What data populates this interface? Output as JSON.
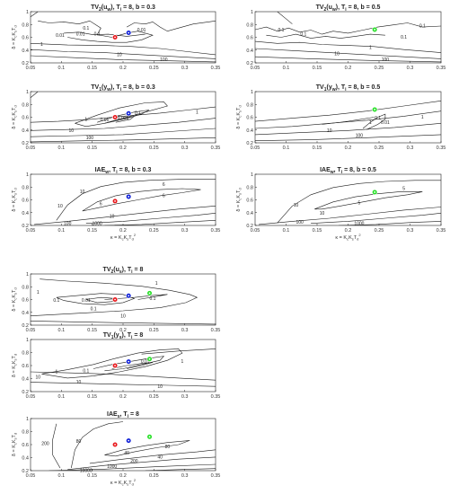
{
  "chart_data": [
    {
      "type": "contour",
      "title": "TV2(uw), Ti = 8, b = 0.3",
      "title_parts": {
        "base": "TV",
        "sub1": "2",
        "paren": "(u",
        "sub2": "w",
        "rest": "), T",
        "sub3": "i",
        "tail": " = 8, b = 0.3"
      },
      "xlabel": "",
      "ylabel": "δ = KcKsTd",
      "xlim": [
        0.05,
        0.35
      ],
      "ylim": [
        0.2,
        1
      ],
      "xticks": [
        "0.05",
        "0.1",
        "0.15",
        "0.2",
        "0.25",
        "0.3",
        "0.35"
      ],
      "yticks": [
        "0.2",
        "0.4",
        "0.6",
        "0.8",
        "1"
      ],
      "contour_labels": [
        "0.01",
        "0.01",
        "0.1",
        "0.1",
        "0.01",
        "1",
        "10",
        "100"
      ],
      "points": [
        {
          "color": "red",
          "kappa": 0.187,
          "delta": 0.6
        },
        {
          "color": "blue",
          "kappa": 0.209,
          "delta": 0.67
        }
      ]
    },
    {
      "type": "contour",
      "title": "TV2(uw), Ti = 8, b = 0.5",
      "title_parts": {
        "base": "TV",
        "sub1": "2",
        "paren": "(u",
        "sub2": "w",
        "rest": "), T",
        "sub3": "i",
        "tail": " = 8, b = 0.5"
      },
      "xlabel": "",
      "ylabel": "",
      "xlim": [
        0.05,
        0.35
      ],
      "ylim": [
        0.2,
        1
      ],
      "xticks": [
        "0.05",
        "0.1",
        "0.15",
        "0.2",
        "0.25",
        "0.3",
        "0.35"
      ],
      "yticks": [
        "0.2",
        "0.4",
        "0.6",
        "0.8",
        "1"
      ],
      "contour_labels": [
        "0.1",
        "0.1",
        "0.1",
        "1",
        "0.1",
        "10",
        "100"
      ],
      "points": [
        {
          "color": "green",
          "kappa": 0.243,
          "delta": 0.72
        }
      ]
    },
    {
      "type": "contour",
      "title": "TV1(yw), Ti = 8, b = 0.3",
      "title_parts": {
        "base": "TV",
        "sub1": "1",
        "paren": "(y",
        "sub2": "w",
        "rest": "), T",
        "sub3": "i",
        "tail": " = 8, b = 0.3"
      },
      "xlabel": "",
      "ylabel": "δ = KcKsTd",
      "xlim": [
        0.05,
        0.35
      ],
      "ylim": [
        0.2,
        1
      ],
      "xticks": [
        "0.05",
        "0.1",
        "0.15",
        "0.2",
        "0.25",
        "0.3",
        "0.35"
      ],
      "yticks": [
        "0.2",
        "0.4",
        "0.6",
        "0.8",
        "1"
      ],
      "contour_labels": [
        "1",
        "0.01",
        "0.001",
        "0.1",
        "1",
        "10",
        "100"
      ],
      "points": [
        {
          "color": "red",
          "kappa": 0.187,
          "delta": 0.6
        },
        {
          "color": "blue",
          "kappa": 0.209,
          "delta": 0.66
        }
      ]
    },
    {
      "type": "contour",
      "title": "TV1(yw), Ti = 8, b = 0.5",
      "title_parts": {
        "base": "TV",
        "sub1": "1",
        "paren": "(y",
        "sub2": "w",
        "rest": "), T",
        "sub3": "i",
        "tail": " = 8, b = 0.5"
      },
      "xlabel": "",
      "ylabel": "δ = KcKsTd",
      "xlim": [
        0.05,
        0.35
      ],
      "ylim": [
        0.2,
        1
      ],
      "xticks": [
        "0.05",
        "0.1",
        "0.15",
        "0.2",
        "0.25",
        "0.3",
        "0.35"
      ],
      "yticks": [
        "0.2",
        "0.4",
        "0.6",
        "0.8",
        "1"
      ],
      "contour_labels": [
        "0.1",
        "1",
        "0.01",
        "10",
        "1",
        "100"
      ],
      "points": [
        {
          "color": "green",
          "kappa": 0.243,
          "delta": 0.72
        }
      ]
    },
    {
      "type": "contour",
      "title": "IAEw, Ti = 8, b = 0.3",
      "title_parts": {
        "base": "IAE",
        "sub1": "w",
        "paren": "",
        "sub2": "",
        "rest": ", T",
        "sub3": "i",
        "tail": " = 8, b = 0.3"
      },
      "xlabel": "κ = KcKsTd²",
      "ylabel": "δ = KcKsTd",
      "xlim": [
        0.05,
        0.35
      ],
      "ylim": [
        0.2,
        1
      ],
      "xticks": [
        "0.05",
        "0.1",
        "0.15",
        "0.2",
        "0.25",
        "0.3",
        "0.35"
      ],
      "yticks": [
        "0.2",
        "0.4",
        "0.6",
        "0.8",
        "1"
      ],
      "contour_labels": [
        "10",
        "6",
        "6",
        "6",
        "10",
        "10",
        "100",
        "1000"
      ],
      "points": [
        {
          "color": "red",
          "kappa": 0.187,
          "delta": 0.58
        },
        {
          "color": "blue",
          "kappa": 0.209,
          "delta": 0.65
        }
      ]
    },
    {
      "type": "contour",
      "title": "IAEw, Ti = 8, b = 0.5",
      "title_parts": {
        "base": "IAE",
        "sub1": "w",
        "paren": "",
        "sub2": "",
        "rest": ", T",
        "sub3": "i",
        "tail": " = 8, b = 0.5"
      },
      "xlabel": "κ = KcKsTd²",
      "ylabel": "δ = KcKsTd",
      "xlim": [
        0.05,
        0.35
      ],
      "ylim": [
        0.2,
        1
      ],
      "xticks": [
        "0.05",
        "0.1",
        "0.15",
        "0.2",
        "0.25",
        "0.3",
        "0.35"
      ],
      "yticks": [
        "0.2",
        "0.4",
        "0.6",
        "0.8",
        "1"
      ],
      "contour_labels": [
        "10",
        "5",
        "5",
        "10",
        "100",
        "1000"
      ],
      "points": [
        {
          "color": "green",
          "kappa": 0.243,
          "delta": 0.72
        }
      ]
    },
    {
      "type": "contour",
      "title": "TV2(us), Ti = 8",
      "title_parts": {
        "base": "TV",
        "sub1": "2",
        "paren": "(u",
        "sub2": "s",
        "rest": "), T",
        "sub3": "i",
        "tail": " = 8"
      },
      "xlabel": "",
      "ylabel": "δ = KcKsTd",
      "xlim": [
        0.05,
        0.35
      ],
      "ylim": [
        0.2,
        1
      ],
      "xticks": [
        "0.05",
        "0.1",
        "0.15",
        "0.2",
        "0.25",
        "0.3",
        "0.35"
      ],
      "yticks": [
        "0.2",
        "0.4",
        "0.6",
        "0.8",
        "1"
      ],
      "contour_labels": [
        "1",
        "0.1",
        "0.01",
        "0.1",
        "1",
        "0.1",
        "10"
      ],
      "points": [
        {
          "color": "red",
          "kappa": 0.187,
          "delta": 0.6
        },
        {
          "color": "blue",
          "kappa": 0.209,
          "delta": 0.66
        },
        {
          "color": "green",
          "kappa": 0.243,
          "delta": 0.7
        }
      ]
    },
    {
      "type": "contour",
      "title": "TV1(ys), Ti = 8",
      "title_parts": {
        "base": "TV",
        "sub1": "1",
        "paren": "(y",
        "sub2": "s",
        "rest": "), T",
        "sub3": "i",
        "tail": " = 8"
      },
      "xlabel": "",
      "ylabel": "δ = KcKsTd",
      "xlim": [
        0.05,
        0.35
      ],
      "ylim": [
        0.2,
        1
      ],
      "xticks": [
        "0.05",
        "0.1",
        "0.15",
        "0.2",
        "0.25",
        "0.3",
        "0.35"
      ],
      "yticks": [
        "0.2",
        "0.4",
        "0.6",
        "0.8",
        "1"
      ],
      "contour_labels": [
        "1",
        "0.1",
        "0.01",
        "1",
        "10",
        "10",
        "10"
      ],
      "points": [
        {
          "color": "red",
          "kappa": 0.187,
          "delta": 0.6
        },
        {
          "color": "blue",
          "kappa": 0.209,
          "delta": 0.66
        },
        {
          "color": "green",
          "kappa": 0.243,
          "delta": 0.7
        }
      ]
    },
    {
      "type": "contour",
      "title": "IAEs, Ti = 8",
      "title_parts": {
        "base": "IAE",
        "sub1": "s",
        "paren": "",
        "sub2": "",
        "rest": ", T",
        "sub3": "i",
        "tail": " = 8"
      },
      "xlabel": "κ = KcKsTd²",
      "ylabel": "δ = KcKsTd",
      "xlim": [
        0.05,
        0.35
      ],
      "ylim": [
        0.2,
        1
      ],
      "xticks": [
        "0.05",
        "0.1",
        "0.15",
        "0.2",
        "0.25",
        "0.3",
        "0.35"
      ],
      "yticks": [
        "0.2",
        "0.4",
        "0.6",
        "0.8",
        "1"
      ],
      "contour_labels": [
        "200",
        "80",
        "40",
        "40",
        "80",
        "200",
        "1000",
        "10000"
      ],
      "points": [
        {
          "color": "red",
          "kappa": 0.187,
          "delta": 0.6
        },
        {
          "color": "blue",
          "kappa": 0.209,
          "delta": 0.66
        },
        {
          "color": "green",
          "kappa": 0.243,
          "delta": 0.72
        }
      ]
    }
  ],
  "colors": {
    "red": "#e8171b",
    "blue": "#1020d8",
    "green": "#28e028",
    "line": "#1a1a1a"
  }
}
